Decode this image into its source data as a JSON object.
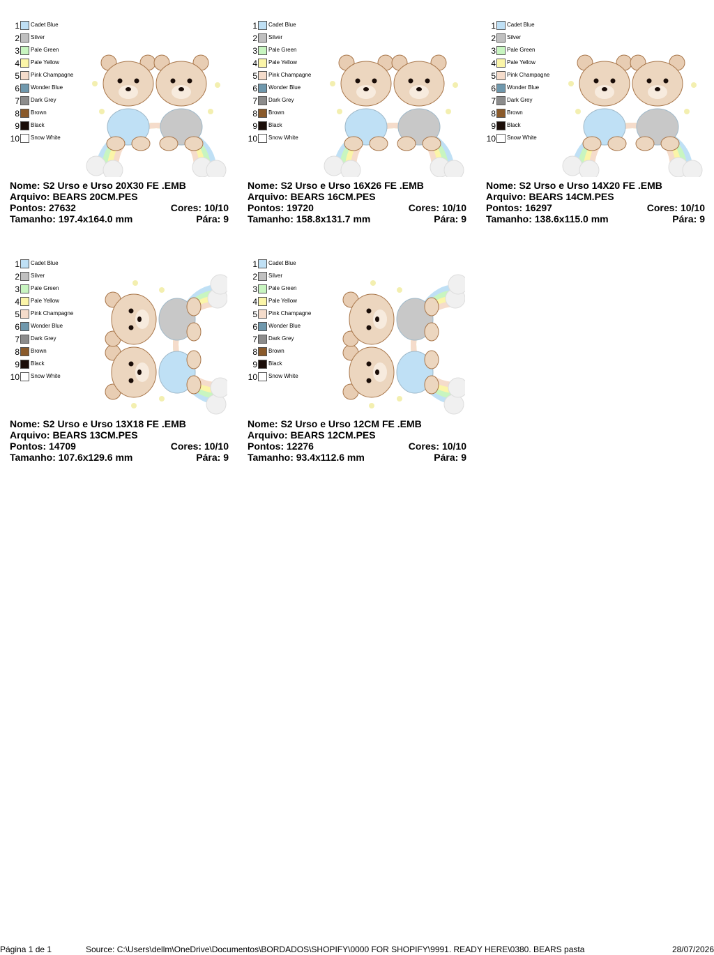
{
  "cards": [
    {
      "threads": [
        {
          "number": 1,
          "name": "Cadet Blue",
          "color": "#bfe0f5"
        },
        {
          "number": 2,
          "name": "Silver",
          "color": "#c0c0c0"
        },
        {
          "number": 3,
          "name": "Pale Green",
          "color": "#c8f5c0"
        },
        {
          "number": 4,
          "name": "Pale Yellow",
          "color": "#fbf5a8"
        },
        {
          "number": 5,
          "name": "Pink Champagne",
          "color": "#f5dccb"
        },
        {
          "number": 6,
          "name": "Wonder Blue",
          "color": "#6f98ad"
        },
        {
          "number": 7,
          "name": "Dark Grey",
          "color": "#8c8c8c"
        },
        {
          "number": 8,
          "name": "Brown",
          "color": "#8a5a2b"
        },
        {
          "number": 9,
          "name": "Black",
          "color": "#1a0d08"
        },
        {
          "number": 10,
          "name": "Snow White",
          "color": "#ffffff"
        }
      ],
      "name": "Nome: S2 Urso e Urso 20X30 FE .EMB",
      "file": "Arquivo: BEARS 20CM.PES",
      "stitches": "Pontos: 27632",
      "colors": "Cores: 10/10",
      "size": "Tamanho: 197.4x164.0 mm",
      "stops": "Pára: 9"
    },
    {
      "threads": [
        {
          "number": 1,
          "name": "Cadet Blue",
          "color": "#bfe0f5"
        },
        {
          "number": 2,
          "name": "Silver",
          "color": "#c0c0c0"
        },
        {
          "number": 3,
          "name": "Pale Green",
          "color": "#c8f5c0"
        },
        {
          "number": 4,
          "name": "Pale Yellow",
          "color": "#fbf5a8"
        },
        {
          "number": 5,
          "name": "Pink Champagne",
          "color": "#f5dccb"
        },
        {
          "number": 6,
          "name": "Wonder Blue",
          "color": "#6f98ad"
        },
        {
          "number": 7,
          "name": "Dark Grey",
          "color": "#8c8c8c"
        },
        {
          "number": 8,
          "name": "Brown",
          "color": "#8a5a2b"
        },
        {
          "number": 9,
          "name": "Black",
          "color": "#1a0d08"
        },
        {
          "number": 10,
          "name": "Snow White",
          "color": "#ffffff"
        }
      ],
      "name": "Nome: S2 Urso e Urso 16X26 FE .EMB",
      "file": "Arquivo: BEARS 16CM.PES",
      "stitches": "Pontos: 19720",
      "colors": "Cores: 10/10",
      "size": "Tamanho: 158.8x131.7 mm",
      "stops": "Pára: 9"
    },
    {
      "threads": [
        {
          "number": 1,
          "name": "Cadet Blue",
          "color": "#bfe0f5"
        },
        {
          "number": 2,
          "name": "Silver",
          "color": "#c0c0c0"
        },
        {
          "number": 3,
          "name": "Pale Green",
          "color": "#c8f5c0"
        },
        {
          "number": 4,
          "name": "Pale Yellow",
          "color": "#fbf5a8"
        },
        {
          "number": 5,
          "name": "Pink Champagne",
          "color": "#f5dccb"
        },
        {
          "number": 6,
          "name": "Wonder Blue",
          "color": "#6f98ad"
        },
        {
          "number": 7,
          "name": "Dark Grey",
          "color": "#8c8c8c"
        },
        {
          "number": 8,
          "name": "Brown",
          "color": "#8a5a2b"
        },
        {
          "number": 9,
          "name": "Black",
          "color": "#1a0d08"
        },
        {
          "number": 10,
          "name": "Snow White",
          "color": "#ffffff"
        }
      ],
      "name": "Nome: S2 Urso e Urso 14X20 FE .EMB",
      "file": "Arquivo: BEARS 14CM.PES",
      "stitches": "Pontos: 16297",
      "colors": "Cores: 10/10",
      "size": "Tamanho: 138.6x115.0 mm",
      "stops": "Pára: 9"
    },
    {
      "threads": [
        {
          "number": 1,
          "name": "Cadet Blue",
          "color": "#bfe0f5"
        },
        {
          "number": 2,
          "name": "Silver",
          "color": "#c0c0c0"
        },
        {
          "number": 3,
          "name": "Pale Green",
          "color": "#c8f5c0"
        },
        {
          "number": 4,
          "name": "Pale Yellow",
          "color": "#fbf5a8"
        },
        {
          "number": 5,
          "name": "Pink Champagne",
          "color": "#f5dccb"
        },
        {
          "number": 6,
          "name": "Wonder Blue",
          "color": "#6f98ad"
        },
        {
          "number": 7,
          "name": "Dark Grey",
          "color": "#8c8c8c"
        },
        {
          "number": 8,
          "name": "Brown",
          "color": "#8a5a2b"
        },
        {
          "number": 9,
          "name": "Black",
          "color": "#1a0d08"
        },
        {
          "number": 10,
          "name": "Snow White",
          "color": "#ffffff"
        }
      ],
      "name": "Nome: S2 Urso e Urso 13X18 FE .EMB",
      "file": "Arquivo: BEARS 13CM.PES",
      "stitches": "Pontos: 14709",
      "colors": "Cores: 10/10",
      "size": "Tamanho: 107.6x129.6 mm",
      "stops": "Pára: 9"
    },
    {
      "threads": [
        {
          "number": 1,
          "name": "Cadet Blue",
          "color": "#bfe0f5"
        },
        {
          "number": 2,
          "name": "Silver",
          "color": "#c0c0c0"
        },
        {
          "number": 3,
          "name": "Pale Green",
          "color": "#c8f5c0"
        },
        {
          "number": 4,
          "name": "Pale Yellow",
          "color": "#fbf5a8"
        },
        {
          "number": 5,
          "name": "Pink Champagne",
          "color": "#f5dccb"
        },
        {
          "number": 6,
          "name": "Wonder Blue",
          "color": "#6f98ad"
        },
        {
          "number": 7,
          "name": "Dark Grey",
          "color": "#8c8c8c"
        },
        {
          "number": 8,
          "name": "Brown",
          "color": "#8a5a2b"
        },
        {
          "number": 9,
          "name": "Black",
          "color": "#1a0d08"
        },
        {
          "number": 10,
          "name": "Snow White",
          "color": "#ffffff"
        }
      ],
      "name": "Nome: S2 Urso e Urso 12CM FE .EMB",
      "file": "Arquivo: BEARS 12CM.PES",
      "stitches": "Pontos: 12276",
      "colors": "Cores: 10/10",
      "size": "Tamanho: 93.4x112.6 mm",
      "stops": "Pára: 9"
    }
  ],
  "footer": {
    "page": "Página 1 de 1",
    "source": "Source: C:\\Users\\dellm\\OneDrive\\Documentos\\BORDADOS\\SHOPIFY\\0000 FOR SHOPIFY\\9991. READY HERE\\0380. BEARS pasta",
    "date": "28/07/2026"
  }
}
